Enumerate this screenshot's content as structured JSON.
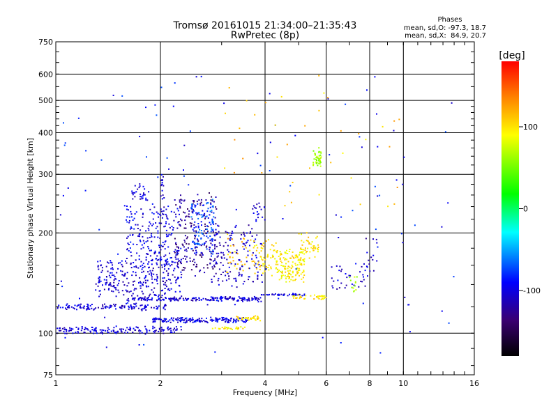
{
  "chart_data": {
    "type": "scatter",
    "title": "Tromsø 20161015 21:34:00–21:35:43",
    "subtitle": "RwPretec (8p)",
    "xlabel": "Frequency [MHz]",
    "ylabel": "Stationary phase Virtual Height [km]",
    "x_scale": "log",
    "y_scale": "log",
    "xlim": [
      1,
      16
    ],
    "ylim": [
      75,
      750
    ],
    "x_ticks": [
      1,
      2,
      4,
      6,
      8,
      10,
      16
    ],
    "y_ticks": [
      75,
      100,
      200,
      300,
      400,
      500,
      600,
      750
    ],
    "x_grid": [
      2,
      4,
      6,
      8,
      10
    ],
    "y_grid": [
      100,
      200,
      300,
      400,
      500,
      600
    ],
    "grid": true,
    "phase_stats": {
      "heading": "Phases",
      "line_o": "mean, sd,O: -97.3, 18.7",
      "line_x": "mean, sd,X:  84.9, 20.7"
    },
    "colorbar": {
      "label": "[deg]",
      "ticks": [
        100,
        0,
        -100
      ],
      "range": [
        -180,
        180
      ]
    },
    "clusters": [
      {
        "f0": 1.0,
        "f1": 2.1,
        "h0": 118,
        "h1": 122,
        "phase": -105,
        "n": 130,
        "spread": 0.01
      },
      {
        "f0": 1.0,
        "f1": 2.3,
        "h0": 100,
        "h1": 104,
        "phase": -105,
        "n": 160,
        "spread": 0.01
      },
      {
        "f0": 1.9,
        "f1": 3.6,
        "h0": 108,
        "h1": 111,
        "phase": -100,
        "n": 170,
        "spread": 0.006
      },
      {
        "f0": 2.8,
        "f1": 3.5,
        "h0": 103,
        "h1": 104,
        "phase": 95,
        "n": 25,
        "spread": 0.006
      },
      {
        "f0": 3.3,
        "f1": 3.9,
        "h0": 110,
        "h1": 112,
        "phase": 100,
        "n": 35,
        "spread": 0.008
      },
      {
        "f0": 1.6,
        "f1": 3.9,
        "h0": 125,
        "h1": 128,
        "phase": -105,
        "n": 190,
        "spread": 0.006
      },
      {
        "f0": 3.9,
        "f1": 5.2,
        "h0": 130,
        "h1": 131,
        "phase": -100,
        "n": 40,
        "spread": 0.005
      },
      {
        "f0": 4.8,
        "f1": 6.0,
        "h0": 127,
        "h1": 130,
        "phase": 100,
        "n": 35,
        "spread": 0.006
      },
      {
        "f0": 1.3,
        "f1": 2.3,
        "h0": 130,
        "h1": 165,
        "phase": -105,
        "n": 260,
        "spread": 0.03
      },
      {
        "f0": 1.6,
        "f1": 2.3,
        "h0": 160,
        "h1": 240,
        "phase": -100,
        "n": 200,
        "spread": 0.03
      },
      {
        "f0": 1.65,
        "f1": 1.85,
        "h0": 250,
        "h1": 280,
        "phase": -105,
        "n": 30,
        "spread": 0.01
      },
      {
        "f0": 2.0,
        "f1": 2.05,
        "h0": 230,
        "h1": 310,
        "phase": -105,
        "n": 20,
        "spread": 0.008
      },
      {
        "f0": 2.2,
        "f1": 2.9,
        "h0": 150,
        "h1": 260,
        "phase": -130,
        "n": 180,
        "spread": 0.03
      },
      {
        "f0": 2.45,
        "f1": 2.85,
        "h0": 175,
        "h1": 250,
        "phase": -75,
        "n": 120,
        "spread": 0.03
      },
      {
        "f0": 2.8,
        "f1": 3.6,
        "h0": 140,
        "h1": 210,
        "phase": -110,
        "n": 120,
        "spread": 0.03
      },
      {
        "f0": 3.1,
        "f1": 3.7,
        "h0": 150,
        "h1": 200,
        "phase": 110,
        "n": 35,
        "spread": 0.03
      },
      {
        "f0": 3.6,
        "f1": 4.0,
        "h0": 140,
        "h1": 250,
        "phase": -105,
        "n": 50,
        "spread": 0.02
      },
      {
        "f0": 3.7,
        "f1": 4.3,
        "h0": 150,
        "h1": 190,
        "phase": 100,
        "n": 60,
        "spread": 0.03
      },
      {
        "f0": 4.3,
        "f1": 5.2,
        "h0": 145,
        "h1": 175,
        "phase": 95,
        "n": 150,
        "spread": 0.03
      },
      {
        "f0": 5.0,
        "f1": 5.7,
        "h0": 170,
        "h1": 200,
        "phase": 100,
        "n": 40,
        "spread": 0.03
      },
      {
        "f0": 5.5,
        "f1": 5.8,
        "h0": 320,
        "h1": 355,
        "phase": 55,
        "n": 40,
        "spread": 0.015
      },
      {
        "f0": 6.2,
        "f1": 8.0,
        "h0": 135,
        "h1": 160,
        "phase": -105,
        "n": 35,
        "spread": 0.03
      },
      {
        "f0": 7.0,
        "f1": 7.4,
        "h0": 135,
        "h1": 150,
        "phase": 60,
        "n": 12,
        "spread": 0.02
      },
      {
        "f0": 7.8,
        "f1": 8.4,
        "h0": 150,
        "h1": 195,
        "phase": -110,
        "n": 14,
        "spread": 0.03
      },
      {
        "f0": 1.0,
        "f1": 14.0,
        "h0": 85,
        "h1": 600,
        "phase": -90,
        "n": 120,
        "spread": 0.0
      },
      {
        "f0": 3.0,
        "f1": 10.0,
        "h0": 230,
        "h1": 600,
        "phase": 110,
        "n": 40,
        "spread": 0.0
      }
    ]
  }
}
